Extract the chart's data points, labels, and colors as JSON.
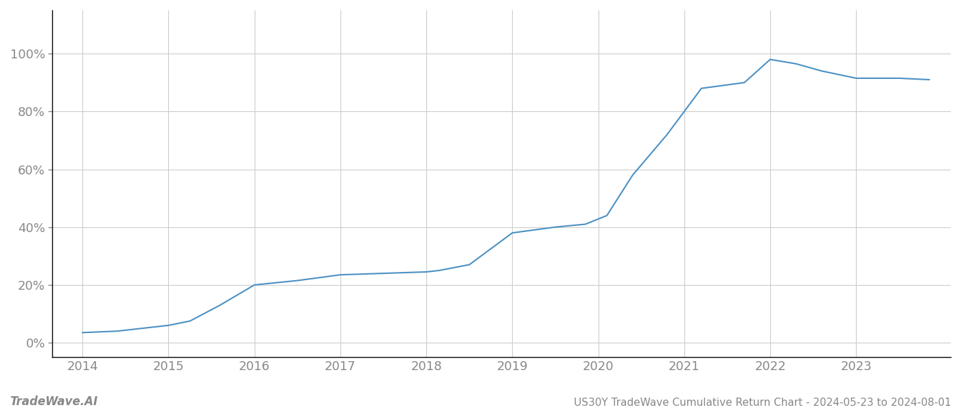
{
  "title": "US30Y TradeWave Cumulative Return Chart - 2024-05-23 to 2024-08-01",
  "watermark": "TradeWave.AI",
  "x_values": [
    2014.0,
    2014.4,
    2015.0,
    2015.25,
    2015.6,
    2016.0,
    2016.5,
    2017.0,
    2017.5,
    2018.0,
    2018.15,
    2018.5,
    2019.0,
    2019.5,
    2019.85,
    2020.1,
    2020.4,
    2020.8,
    2021.0,
    2021.2,
    2021.7,
    2022.0,
    2022.3,
    2022.6,
    2023.0,
    2023.5,
    2023.85
  ],
  "y_values": [
    3.5,
    4.0,
    6.0,
    7.5,
    13.0,
    20.0,
    21.5,
    23.5,
    24.0,
    24.5,
    25.0,
    27.0,
    38.0,
    40.0,
    41.0,
    44.0,
    58.0,
    72.0,
    80.0,
    88.0,
    90.0,
    98.0,
    96.5,
    94.0,
    91.5,
    91.5,
    91.0
  ],
  "line_color": "#4a90c4",
  "line_width": 1.5,
  "background_color": "#ffffff",
  "grid_color": "#cccccc",
  "tick_color": "#888888",
  "spine_color": "#000000",
  "title_color": "#888888",
  "watermark_color": "#888888",
  "ylim": [
    -5,
    115
  ],
  "yticks": [
    0,
    20,
    40,
    60,
    80,
    100
  ],
  "xticks": [
    2014,
    2015,
    2016,
    2017,
    2018,
    2019,
    2020,
    2021,
    2022,
    2023
  ],
  "title_fontsize": 11,
  "tick_fontsize": 13,
  "watermark_fontsize": 12,
  "xlim_left": 2013.65,
  "xlim_right": 2024.1
}
